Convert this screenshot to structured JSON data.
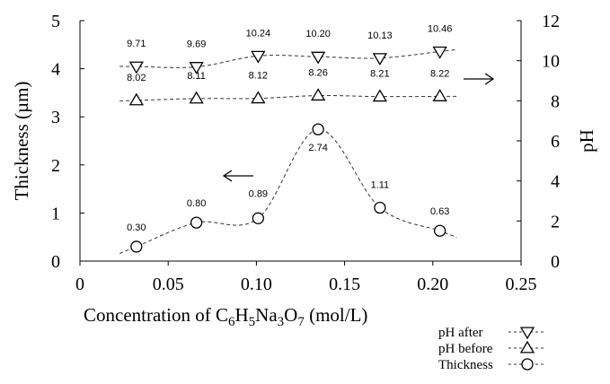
{
  "chart_data": {
    "type": "scatter",
    "xlabel_prefix": "Concentration of C",
    "xlabel_parts": [
      {
        "text": "C",
        "sub": false
      },
      {
        "text": "6",
        "sub": true
      },
      {
        "text": "H",
        "sub": false
      },
      {
        "text": "5",
        "sub": true
      },
      {
        "text": "Na",
        "sub": false
      },
      {
        "text": "3",
        "sub": true
      },
      {
        "text": "O",
        "sub": false
      },
      {
        "text": "7",
        "sub": true
      },
      {
        "text": " (mol/L)",
        "sub": false
      }
    ],
    "xlabel_lead": "Concentration of ",
    "ylabel_left": "Thickness (µm)",
    "ylabel_right": "pH",
    "xlim": [
      0,
      0.25
    ],
    "xticks": [
      "0",
      "0.05",
      "0.10",
      "0.15",
      "0.20",
      "0.25"
    ],
    "ylim_left": [
      0,
      5
    ],
    "yticks_left": [
      "0",
      "1",
      "2",
      "3",
      "4",
      "5"
    ],
    "ylim_right": [
      0,
      12
    ],
    "yticks_right": [
      "0",
      "2",
      "4",
      "6",
      "8",
      "10",
      "12"
    ],
    "x": [
      0.032,
      0.066,
      0.101,
      0.135,
      0.17,
      0.204
    ],
    "series": [
      {
        "name": "pH after",
        "axis": "right",
        "marker": "triangle-down",
        "values": [
          9.71,
          9.69,
          10.24,
          10.2,
          10.13,
          10.46
        ],
        "labels": [
          "9.71",
          "9.69",
          "10.24",
          "10.20",
          "10.13",
          "10.46"
        ]
      },
      {
        "name": "pH before",
        "axis": "right",
        "marker": "triangle-up",
        "values": [
          8.02,
          8.11,
          8.12,
          8.26,
          8.21,
          8.22
        ],
        "labels": [
          "8.02",
          "8.11",
          "8.12",
          "8.26",
          "8.21",
          "8.22"
        ]
      },
      {
        "name": "Thickness",
        "axis": "left",
        "marker": "circle",
        "values": [
          0.3,
          0.8,
          0.89,
          2.74,
          1.11,
          0.63
        ],
        "labels": [
          "0.30",
          "0.80",
          "0.89",
          "2.74",
          "1.11",
          "0.63"
        ]
      }
    ],
    "legend_position": "bottom-right",
    "grid": false
  }
}
